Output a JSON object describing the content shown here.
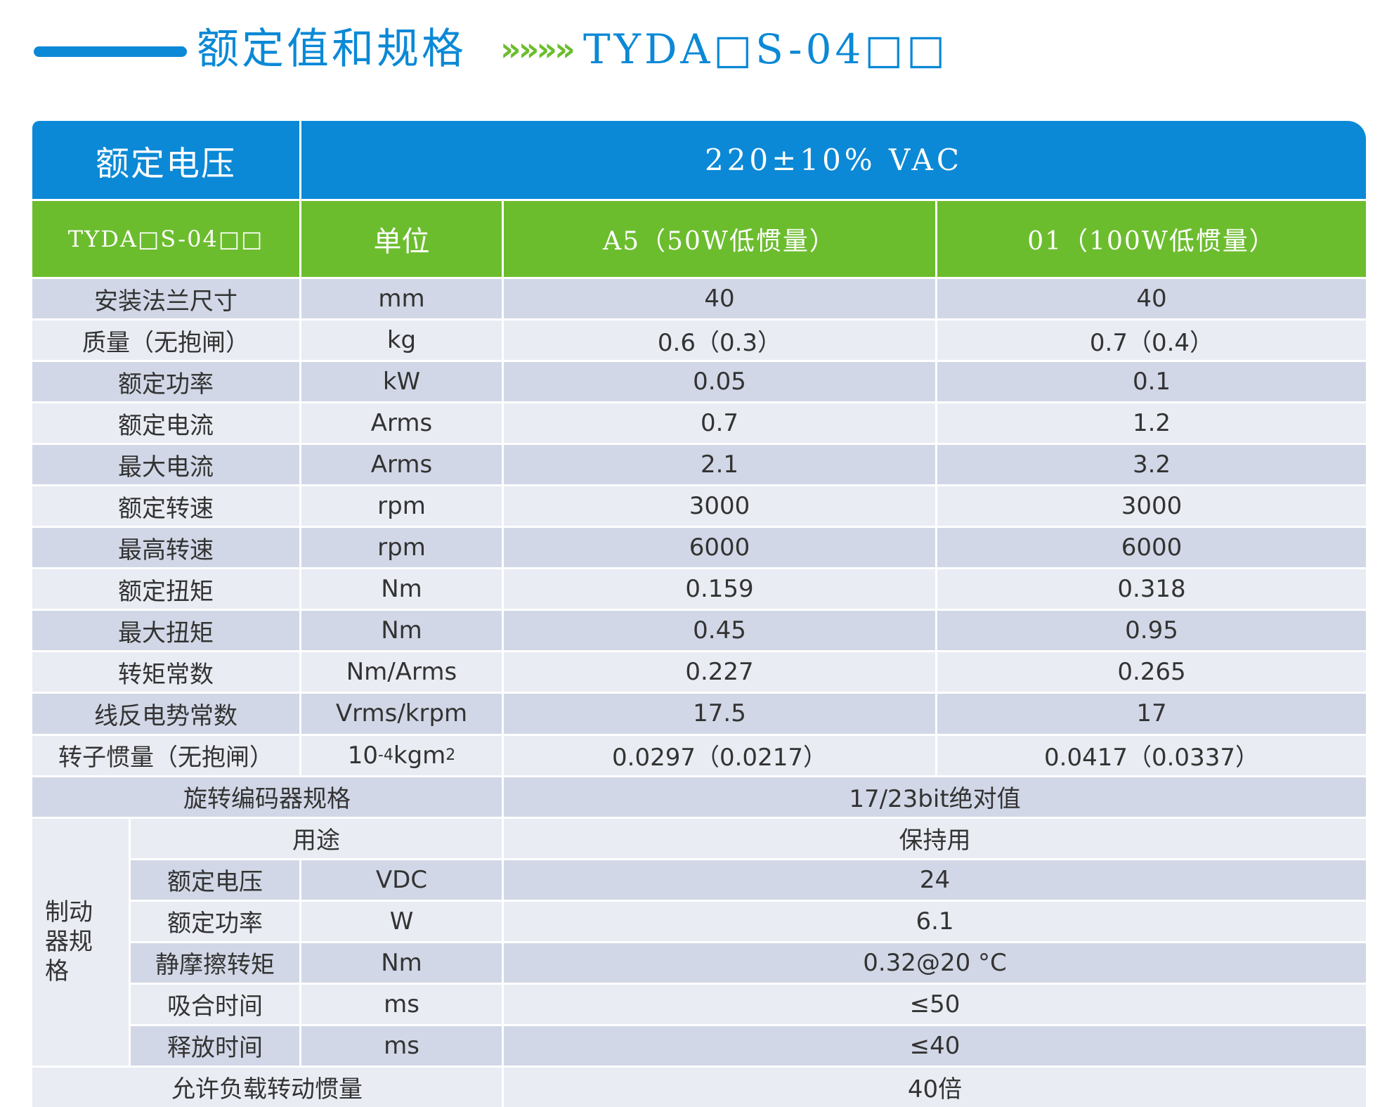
{
  "header": {
    "title": "额定值和规格",
    "arrows": "»»»»",
    "model": "TYDA□S-04□□"
  },
  "table": {
    "rated_voltage_label": "额定电压",
    "rated_voltage_value": "220±10% VAC",
    "col_model": "TYDA□S-04□□",
    "col_unit": "单位",
    "col_a5": "A5（50W低惯量）",
    "col_01": "01（100W低惯量）",
    "rows": [
      {
        "label": "安装法兰尺寸",
        "unit": "mm",
        "a5": "40",
        "o1": "40"
      },
      {
        "label": "质量（无抱闸）",
        "unit": "kg",
        "a5": "0.6（0.3）",
        "o1": "0.7（0.4）"
      },
      {
        "label": "额定功率",
        "unit": "kW",
        "a5": "0.05",
        "o1": "0.1"
      },
      {
        "label": "额定电流",
        "unit": "Arms",
        "a5": "0.7",
        "o1": "1.2"
      },
      {
        "label": "最大电流",
        "unit": "Arms",
        "a5": "2.1",
        "o1": "3.2"
      },
      {
        "label": "额定转速",
        "unit": "rpm",
        "a5": "3000",
        "o1": "3000"
      },
      {
        "label": "最高转速",
        "unit": "rpm",
        "a5": "6000",
        "o1": "6000"
      },
      {
        "label": "额定扭矩",
        "unit": "Nm",
        "a5": "0.159",
        "o1": "0.318"
      },
      {
        "label": "最大扭矩",
        "unit": "Nm",
        "a5": "0.45",
        "o1": "0.95"
      },
      {
        "label": "转矩常数",
        "unit": "Nm/Arms",
        "a5": "0.227",
        "o1": "0.265"
      },
      {
        "label": "线反电势常数",
        "unit": "Vrms/krpm",
        "a5": "17.5",
        "o1": "17"
      }
    ],
    "inertia": {
      "label": "转子惯量（无抱闸）",
      "unit_base": "10",
      "unit_exp": "-4",
      "unit_mid": "kgm",
      "unit_exp2": "2",
      "a5": "0.0297（0.0217）",
      "o1": "0.0417（0.0337）"
    },
    "encoder": {
      "label": "旋转编码器规格",
      "value": "17/23bit绝对值"
    },
    "brake": {
      "label": "制动器规格",
      "use_label": "用途",
      "use_value": "保持用",
      "rows": [
        {
          "label": "额定电压",
          "unit": "VDC",
          "value": "24"
        },
        {
          "label": "额定功率",
          "unit": "W",
          "value": "6.1"
        },
        {
          "label": "静摩擦转矩",
          "unit": "Nm",
          "value": "0.32@20 °C"
        },
        {
          "label": "吸合时间",
          "unit": "ms",
          "value": "≤50"
        },
        {
          "label": "释放时间",
          "unit": "ms",
          "value": "≤40"
        }
      ]
    },
    "load_inertia": {
      "label": "允许负载转动惯量",
      "value": "40倍"
    }
  }
}
